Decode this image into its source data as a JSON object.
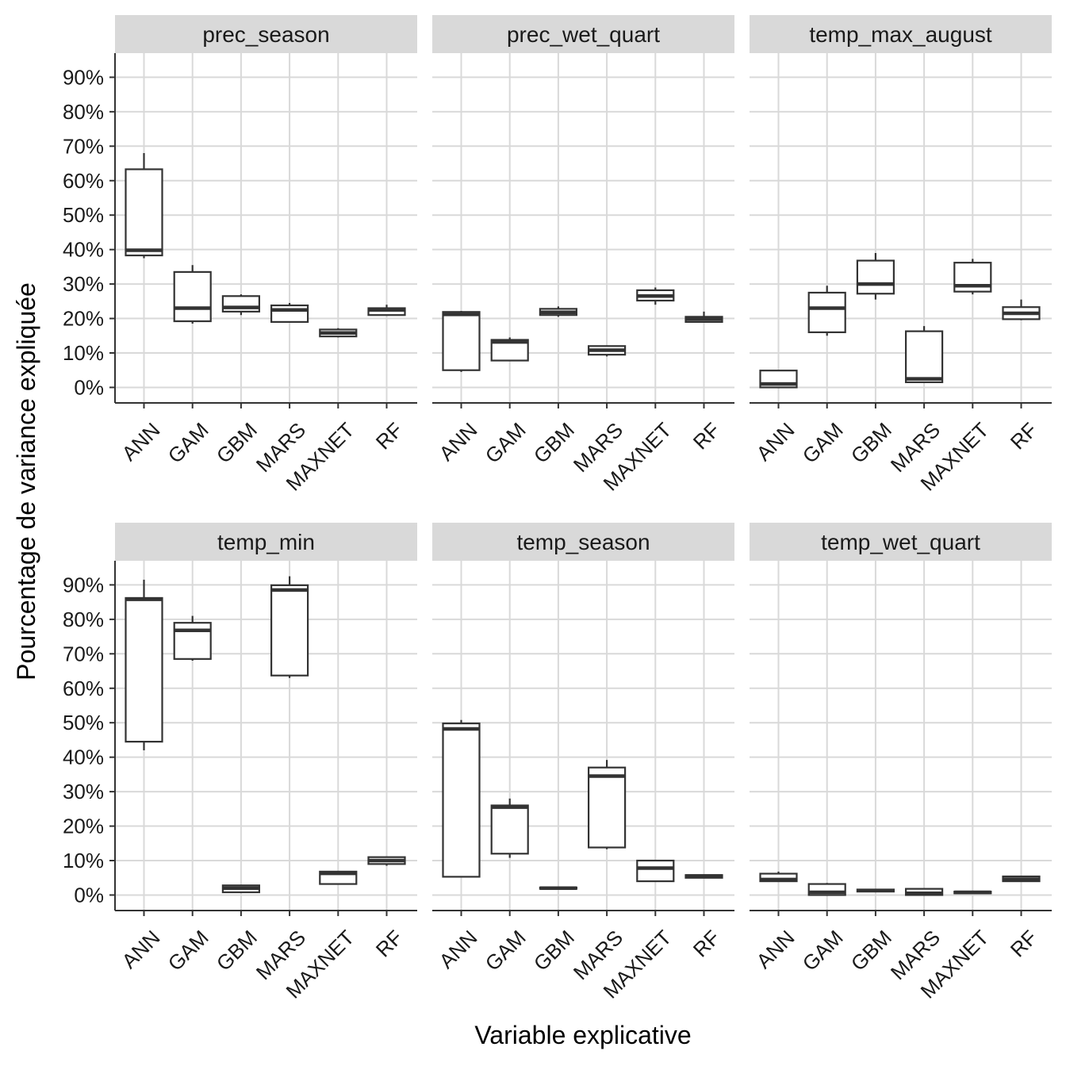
{
  "chart_data": {
    "type": "boxplot",
    "xlabel": "Variable explicative",
    "ylabel": "Pourcentage de variance expliquée",
    "ylim": [
      -4.5,
      97
    ],
    "y_ticks": [
      0,
      10,
      20,
      30,
      40,
      50,
      60,
      70,
      80,
      90
    ],
    "y_tick_labels": [
      "0%",
      "10%",
      "20%",
      "30%",
      "40%",
      "50%",
      "60%",
      "70%",
      "80%",
      "90%"
    ],
    "categories": [
      "ANN",
      "GAM",
      "GBM",
      "MARS",
      "MAXNET",
      "RF"
    ],
    "facets": [
      {
        "name": "prec_season",
        "boxes": [
          {
            "category": "ANN",
            "min": 37.5,
            "q1": 38.3,
            "median": 39.8,
            "q3": 63.3,
            "max": 68.0
          },
          {
            "category": "GAM",
            "min": 18.5,
            "q1": 19.2,
            "median": 23.0,
            "q3": 33.5,
            "max": 35.5
          },
          {
            "category": "GBM",
            "min": 21.0,
            "q1": 22.0,
            "median": 23.2,
            "q3": 26.5,
            "max": 27.0
          },
          {
            "category": "MARS",
            "min": 19.0,
            "q1": 19.0,
            "median": 22.5,
            "q3": 23.8,
            "max": 24.5
          },
          {
            "category": "MAXNET",
            "min": 14.5,
            "q1": 14.8,
            "median": 15.8,
            "q3": 16.8,
            "max": 17.2
          },
          {
            "category": "RF",
            "min": 20.8,
            "q1": 21.0,
            "median": 22.5,
            "q3": 23.0,
            "max": 24.0
          }
        ]
      },
      {
        "name": "prec_wet_quart",
        "boxes": [
          {
            "category": "ANN",
            "min": 4.5,
            "q1": 5.0,
            "median": 21.2,
            "q3": 21.9,
            "max": 22.2
          },
          {
            "category": "GAM",
            "min": 7.8,
            "q1": 7.8,
            "median": 13.2,
            "q3": 13.8,
            "max": 14.5
          },
          {
            "category": "GBM",
            "min": 20.5,
            "q1": 21.0,
            "median": 21.8,
            "q3": 22.8,
            "max": 23.5
          },
          {
            "category": "MARS",
            "min": 9.0,
            "q1": 9.5,
            "median": 10.8,
            "q3": 12.0,
            "max": 12.2
          },
          {
            "category": "MAXNET",
            "min": 24.0,
            "q1": 25.2,
            "median": 26.5,
            "q3": 28.2,
            "max": 29.0
          },
          {
            "category": "RF",
            "min": 19.0,
            "q1": 19.0,
            "median": 19.8,
            "q3": 20.5,
            "max": 22.0
          }
        ]
      },
      {
        "name": "temp_max_august",
        "boxes": [
          {
            "category": "ANN",
            "min": 0.0,
            "q1": 0.0,
            "median": 1.0,
            "q3": 4.9,
            "max": 4.9
          },
          {
            "category": "GAM",
            "min": 15.0,
            "q1": 16.0,
            "median": 23.0,
            "q3": 27.5,
            "max": 29.5
          },
          {
            "category": "GBM",
            "min": 25.5,
            "q1": 27.2,
            "median": 30.0,
            "q3": 36.8,
            "max": 39.0
          },
          {
            "category": "MARS",
            "min": 1.5,
            "q1": 1.5,
            "median": 2.5,
            "q3": 16.3,
            "max": 17.8
          },
          {
            "category": "MAXNET",
            "min": 27.0,
            "q1": 27.8,
            "median": 29.5,
            "q3": 36.2,
            "max": 37.3
          },
          {
            "category": "RF",
            "min": 19.5,
            "q1": 19.8,
            "median": 21.5,
            "q3": 23.3,
            "max": 25.5
          }
        ]
      },
      {
        "name": "temp_min",
        "boxes": [
          {
            "category": "ANN",
            "min": 42.0,
            "q1": 44.5,
            "median": 85.8,
            "q3": 86.2,
            "max": 91.5
          },
          {
            "category": "GAM",
            "min": 68.0,
            "q1": 68.5,
            "median": 76.8,
            "q3": 79.0,
            "max": 81.0
          },
          {
            "category": "GBM",
            "min": 0.8,
            "q1": 0.8,
            "median": 2.0,
            "q3": 2.8,
            "max": 2.8
          },
          {
            "category": "MARS",
            "min": 63.0,
            "q1": 63.7,
            "median": 88.5,
            "q3": 89.9,
            "max": 92.5
          },
          {
            "category": "MAXNET",
            "min": 3.2,
            "q1": 3.2,
            "median": 6.3,
            "q3": 6.8,
            "max": 7.0
          },
          {
            "category": "RF",
            "min": 8.5,
            "q1": 9.0,
            "median": 10.0,
            "q3": 11.0,
            "max": 11.2
          }
        ]
      },
      {
        "name": "temp_season",
        "boxes": [
          {
            "category": "ANN",
            "min": 5.3,
            "q1": 5.3,
            "median": 48.2,
            "q3": 49.8,
            "max": 50.8
          },
          {
            "category": "GAM",
            "min": 10.8,
            "q1": 12.0,
            "median": 25.5,
            "q3": 26.0,
            "max": 28.0
          },
          {
            "category": "GBM",
            "min": 1.8,
            "q1": 1.8,
            "median": 2.0,
            "q3": 2.2,
            "max": 2.3
          },
          {
            "category": "MARS",
            "min": 13.3,
            "q1": 13.8,
            "median": 34.5,
            "q3": 37.0,
            "max": 39.2
          },
          {
            "category": "MAXNET",
            "min": 4.0,
            "q1": 4.0,
            "median": 7.8,
            "q3": 10.0,
            "max": 10.0
          },
          {
            "category": "RF",
            "min": 5.0,
            "q1": 5.0,
            "median": 5.5,
            "q3": 5.8,
            "max": 5.8
          }
        ]
      },
      {
        "name": "temp_wet_quart",
        "boxes": [
          {
            "category": "ANN",
            "min": 4.0,
            "q1": 4.0,
            "median": 4.5,
            "q3": 6.2,
            "max": 6.8
          },
          {
            "category": "GAM",
            "min": 0.0,
            "q1": 0.0,
            "median": 0.8,
            "q3": 3.2,
            "max": 3.5
          },
          {
            "category": "GBM",
            "min": 1.0,
            "q1": 1.0,
            "median": 1.3,
            "q3": 1.6,
            "max": 1.6
          },
          {
            "category": "MARS",
            "min": 0.0,
            "q1": 0.0,
            "median": 0.5,
            "q3": 1.8,
            "max": 1.8
          },
          {
            "category": "MAXNET",
            "min": 0.5,
            "q1": 0.5,
            "median": 0.8,
            "q3": 1.0,
            "max": 1.0
          },
          {
            "category": "RF",
            "min": 4.0,
            "q1": 4.0,
            "median": 4.6,
            "q3": 5.4,
            "max": 5.4
          }
        ]
      }
    ]
  }
}
